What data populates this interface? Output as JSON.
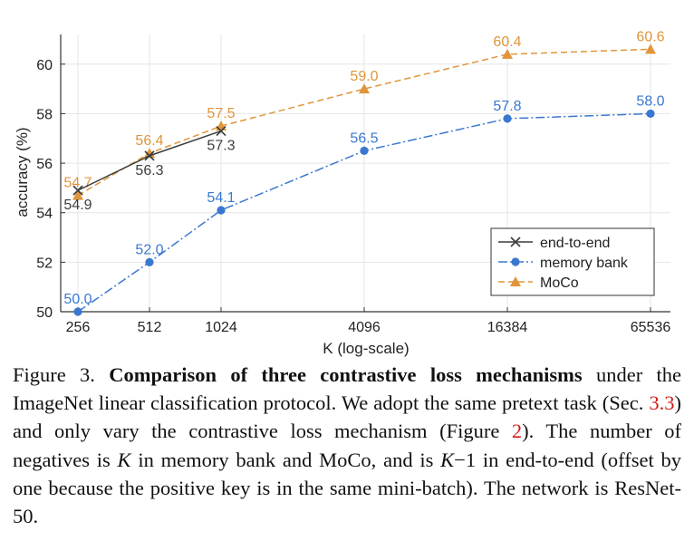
{
  "chart_data": {
    "type": "line",
    "xlabel": "K (log-scale)",
    "ylabel": "accuracy (%)",
    "x_scale": "log2",
    "x_ticks": [
      "256",
      "512",
      "1024",
      "4096",
      "16384",
      "65536"
    ],
    "ylim": [
      50,
      61.2
    ],
    "y_ticks": [
      "50",
      "52",
      "54",
      "56",
      "58",
      "60"
    ],
    "grid": true,
    "legend": "bottom-right",
    "series": [
      {
        "name": "end-to-end",
        "color": "#3c3c3c",
        "marker": "x",
        "x": [
          256,
          512,
          1024
        ],
        "values": [
          54.9,
          56.3,
          57.3
        ],
        "labels": [
          "54.9",
          "56.3",
          "57.3"
        ]
      },
      {
        "name": "memory bank",
        "color": "#3a78d0",
        "marker": "circle",
        "x": [
          256,
          512,
          1024,
          4096,
          16384,
          65536
        ],
        "values": [
          50.0,
          52.0,
          54.1,
          56.5,
          57.8,
          58.0
        ],
        "labels": [
          "50.0",
          "52.0",
          "54.1",
          "56.5",
          "57.8",
          "58.0"
        ]
      },
      {
        "name": "MoCo",
        "color": "#e0953a",
        "marker": "triangle",
        "x": [
          256,
          512,
          1024,
          4096,
          16384,
          65536
        ],
        "values": [
          54.7,
          56.4,
          57.5,
          59.0,
          60.4,
          60.6
        ],
        "labels": [
          "54.7",
          "56.4",
          "57.5",
          "59.0",
          "60.4",
          "60.6"
        ]
      }
    ]
  },
  "caption": {
    "figure_label": "Figure 3.",
    "title": "Comparison of three contrastive loss mechanisms",
    "part1": " under the ImageNet linear classification protocol. We adopt the same pretext task (Sec. ",
    "ref1": "3.3",
    "part2": ") and only vary the contrastive loss mechanism (Figure ",
    "ref2": "2",
    "part3": "). The number of negatives is ",
    "var_k1": "K",
    "part4": " in memory bank and MoCo, and is ",
    "var_k2": "K",
    "minus_one": "−1",
    "part5": " in end-to-end (offset by one because the positive key is in the same mini-batch). The network is ResNet-50."
  }
}
